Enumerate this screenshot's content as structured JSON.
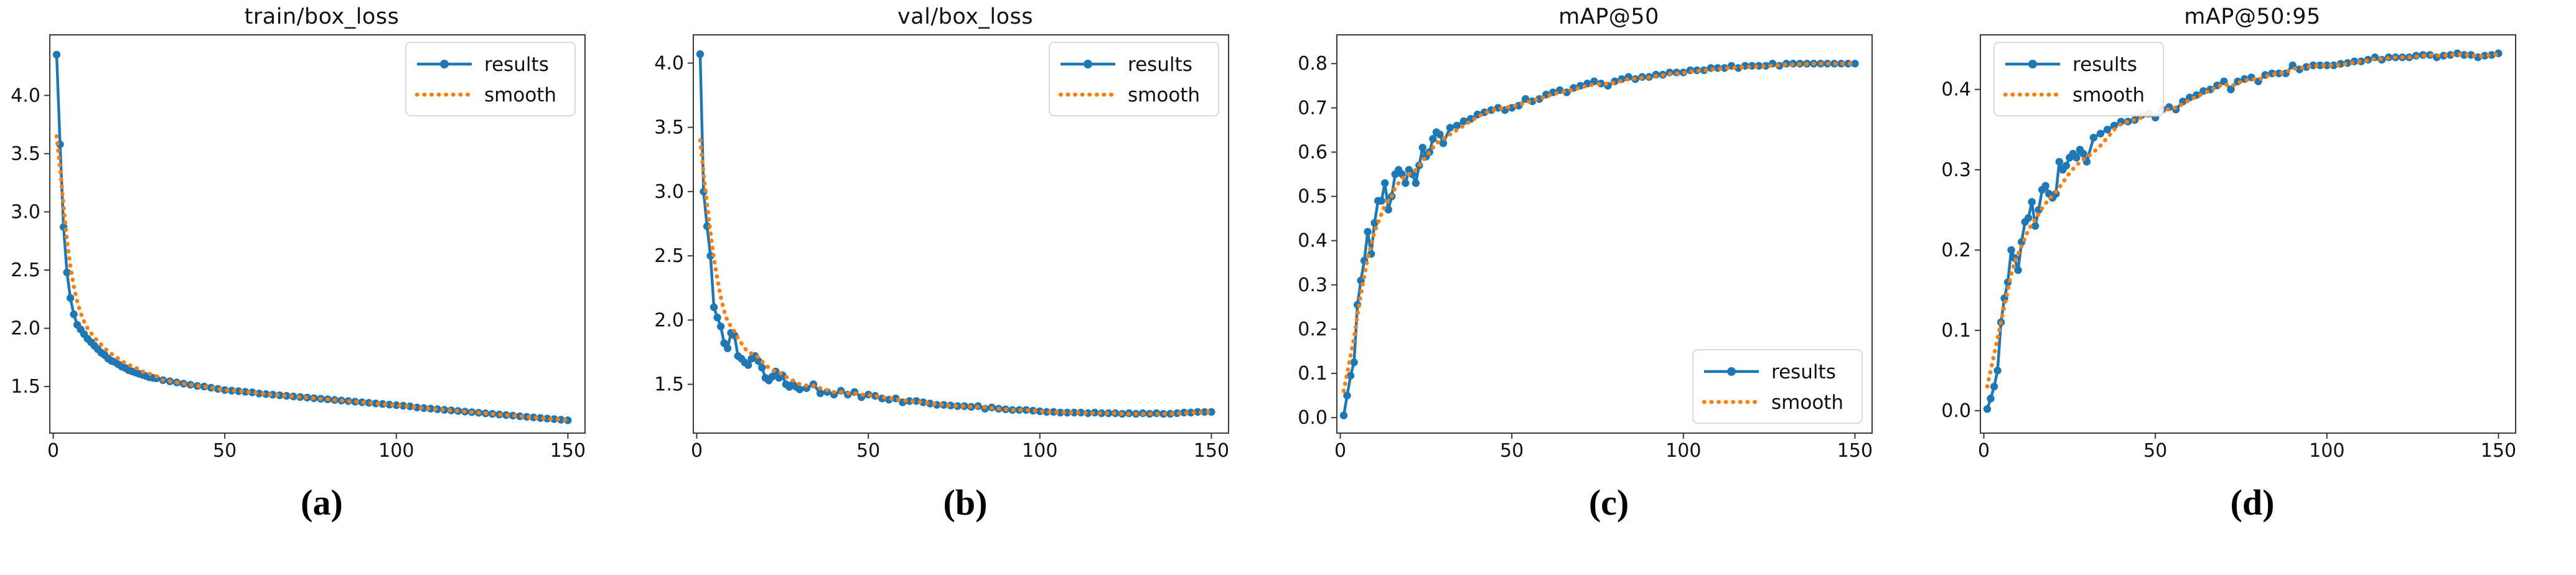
{
  "figure": {
    "background": "#ffffff",
    "description": "Four training-metric line charts over 150 epochs"
  },
  "colors": {
    "results_line": "#1f77b4",
    "smooth_line": "#ff7f0e",
    "axis": "#3a3a3a",
    "tick_text": "#111111",
    "legend_border": "#d9d9d9",
    "legend_bg": "#ffffff"
  },
  "legend": {
    "results_label": "results",
    "smooth_label": "smooth"
  },
  "chart_data": {
    "type": "line",
    "legend_entries": [
      "results",
      "smooth"
    ],
    "grid": false,
    "epochs": [
      1,
      2,
      3,
      4,
      5,
      6,
      7,
      8,
      9,
      10,
      11,
      12,
      13,
      14,
      15,
      16,
      17,
      18,
      19,
      20,
      21,
      22,
      23,
      24,
      25,
      26,
      27,
      28,
      29,
      30,
      32,
      34,
      36,
      38,
      40,
      42,
      44,
      46,
      48,
      50,
      52,
      54,
      56,
      58,
      60,
      62,
      64,
      66,
      68,
      70,
      72,
      74,
      76,
      78,
      80,
      82,
      84,
      86,
      88,
      90,
      92,
      94,
      96,
      98,
      100,
      102,
      104,
      106,
      108,
      110,
      112,
      114,
      116,
      118,
      120,
      122,
      124,
      126,
      128,
      130,
      132,
      134,
      136,
      138,
      140,
      142,
      144,
      146,
      148,
      150
    ],
    "charts": [
      {
        "title": "train/box_loss",
        "caption": "(a)",
        "legend_position": "upper-right",
        "xlim": [
          -1,
          155
        ],
        "ylim": [
          1.1,
          4.52
        ],
        "xticks": [
          0,
          50,
          100,
          150
        ],
        "yticks": [
          1.5,
          2.0,
          2.5,
          3.0,
          3.5,
          4.0
        ],
        "series": [
          {
            "name": "results",
            "values": [
              4.35,
              3.58,
              2.87,
              2.48,
              2.26,
              2.12,
              2.03,
              1.99,
              1.95,
              1.91,
              1.88,
              1.85,
              1.82,
              1.79,
              1.77,
              1.74,
              1.72,
              1.71,
              1.69,
              1.67,
              1.66,
              1.64,
              1.63,
              1.62,
              1.61,
              1.6,
              1.59,
              1.58,
              1.575,
              1.57,
              1.555,
              1.545,
              1.535,
              1.525,
              1.515,
              1.505,
              1.5,
              1.49,
              1.48,
              1.47,
              1.465,
              1.46,
              1.455,
              1.45,
              1.44,
              1.435,
              1.43,
              1.425,
              1.42,
              1.415,
              1.41,
              1.405,
              1.4,
              1.395,
              1.39,
              1.385,
              1.38,
              1.375,
              1.37,
              1.365,
              1.36,
              1.355,
              1.35,
              1.345,
              1.34,
              1.335,
              1.33,
              1.32,
              1.315,
              1.31,
              1.305,
              1.3,
              1.295,
              1.29,
              1.285,
              1.28,
              1.275,
              1.27,
              1.265,
              1.26,
              1.255,
              1.25,
              1.245,
              1.24,
              1.235,
              1.23,
              1.225,
              1.22,
              1.215,
              1.21
            ]
          },
          {
            "name": "smooth",
            "values": [
              3.65,
              3.38,
              3.05,
              2.76,
              2.53,
              2.36,
              2.23,
              2.13,
              2.06,
              2.0,
              1.96,
              1.92,
              1.89,
              1.86,
              1.83,
              1.8,
              1.78,
              1.76,
              1.74,
              1.72,
              1.7,
              1.69,
              1.67,
              1.66,
              1.65,
              1.63,
              1.62,
              1.61,
              1.6,
              1.59,
              1.555,
              1.545,
              1.535,
              1.525,
              1.515,
              1.505,
              1.5,
              1.49,
              1.48,
              1.47,
              1.465,
              1.46,
              1.455,
              1.45,
              1.44,
              1.435,
              1.43,
              1.425,
              1.42,
              1.415,
              1.41,
              1.405,
              1.4,
              1.395,
              1.39,
              1.385,
              1.38,
              1.375,
              1.37,
              1.365,
              1.36,
              1.355,
              1.35,
              1.345,
              1.34,
              1.335,
              1.33,
              1.32,
              1.315,
              1.31,
              1.305,
              1.3,
              1.295,
              1.29,
              1.285,
              1.28,
              1.275,
              1.27,
              1.265,
              1.26,
              1.255,
              1.25,
              1.245,
              1.24,
              1.235,
              1.23,
              1.225,
              1.22,
              1.215,
              1.21
            ]
          }
        ]
      },
      {
        "title": "val/box_loss",
        "caption": "(b)",
        "legend_position": "upper-right",
        "xlim": [
          -1,
          155
        ],
        "ylim": [
          1.12,
          4.22
        ],
        "xticks": [
          0,
          50,
          100,
          150
        ],
        "yticks": [
          1.5,
          2.0,
          2.5,
          3.0,
          3.5,
          4.0
        ],
        "series": [
          {
            "name": "results",
            "values": [
              4.07,
              3.0,
              2.73,
              2.5,
              2.1,
              2.02,
              1.95,
              1.82,
              1.78,
              1.9,
              1.88,
              1.72,
              1.7,
              1.67,
              1.65,
              1.7,
              1.72,
              1.68,
              1.63,
              1.55,
              1.53,
              1.56,
              1.6,
              1.55,
              1.57,
              1.5,
              1.48,
              1.5,
              1.48,
              1.46,
              1.47,
              1.5,
              1.43,
              1.44,
              1.42,
              1.45,
              1.42,
              1.44,
              1.4,
              1.42,
              1.41,
              1.39,
              1.38,
              1.39,
              1.36,
              1.37,
              1.37,
              1.36,
              1.35,
              1.34,
              1.34,
              1.335,
              1.33,
              1.33,
              1.325,
              1.33,
              1.31,
              1.32,
              1.31,
              1.305,
              1.3,
              1.3,
              1.3,
              1.295,
              1.29,
              1.285,
              1.285,
              1.28,
              1.28,
              1.28,
              1.28,
              1.275,
              1.28,
              1.275,
              1.275,
              1.275,
              1.27,
              1.275,
              1.27,
              1.275,
              1.27,
              1.275,
              1.27,
              1.27,
              1.275,
              1.28,
              1.28,
              1.285,
              1.285,
              1.285
            ]
          },
          {
            "name": "smooth",
            "values": [
              3.4,
              3.14,
              2.9,
              2.68,
              2.48,
              2.32,
              2.18,
              2.07,
              1.99,
              1.95,
              1.91,
              1.86,
              1.82,
              1.78,
              1.75,
              1.74,
              1.73,
              1.71,
              1.68,
              1.65,
              1.63,
              1.61,
              1.6,
              1.59,
              1.58,
              1.56,
              1.54,
              1.53,
              1.52,
              1.5,
              1.49,
              1.49,
              1.47,
              1.455,
              1.44,
              1.44,
              1.43,
              1.43,
              1.42,
              1.415,
              1.41,
              1.4,
              1.39,
              1.385,
              1.375,
              1.37,
              1.365,
              1.36,
              1.35,
              1.345,
              1.34,
              1.335,
              1.33,
              1.33,
              1.325,
              1.325,
              1.32,
              1.315,
              1.31,
              1.305,
              1.3,
              1.3,
              1.3,
              1.295,
              1.29,
              1.285,
              1.285,
              1.28,
              1.28,
              1.28,
              1.28,
              1.275,
              1.275,
              1.275,
              1.275,
              1.275,
              1.27,
              1.27,
              1.27,
              1.27,
              1.27,
              1.27,
              1.27,
              1.27,
              1.275,
              1.275,
              1.28,
              1.28,
              1.285,
              1.285
            ]
          }
        ]
      },
      {
        "title": "mAP@50",
        "caption": "(c)",
        "legend_position": "lower-right",
        "xlim": [
          -1,
          155
        ],
        "ylim": [
          -0.035,
          0.865
        ],
        "xticks": [
          0,
          50,
          100,
          150
        ],
        "yticks": [
          0.0,
          0.1,
          0.2,
          0.3,
          0.4,
          0.5,
          0.6,
          0.7,
          0.8
        ],
        "series": [
          {
            "name": "results",
            "values": [
              0.005,
              0.05,
              0.095,
              0.125,
              0.255,
              0.31,
              0.355,
              0.42,
              0.37,
              0.44,
              0.49,
              0.49,
              0.53,
              0.47,
              0.5,
              0.55,
              0.56,
              0.55,
              0.53,
              0.56,
              0.55,
              0.53,
              0.57,
              0.61,
              0.59,
              0.6,
              0.63,
              0.645,
              0.64,
              0.62,
              0.655,
              0.66,
              0.67,
              0.675,
              0.685,
              0.69,
              0.695,
              0.7,
              0.695,
              0.7,
              0.705,
              0.72,
              0.715,
              0.72,
              0.73,
              0.735,
              0.74,
              0.735,
              0.745,
              0.75,
              0.755,
              0.76,
              0.755,
              0.75,
              0.76,
              0.765,
              0.77,
              0.765,
              0.77,
              0.77,
              0.775,
              0.775,
              0.78,
              0.78,
              0.78,
              0.785,
              0.785,
              0.785,
              0.79,
              0.79,
              0.79,
              0.795,
              0.79,
              0.795,
              0.795,
              0.795,
              0.795,
              0.8,
              0.795,
              0.8,
              0.8,
              0.8,
              0.8,
              0.8,
              0.8,
              0.8,
              0.8,
              0.8,
              0.8,
              0.8
            ]
          },
          {
            "name": "smooth",
            "values": [
              0.06,
              0.1,
              0.14,
              0.18,
              0.23,
              0.28,
              0.32,
              0.36,
              0.39,
              0.42,
              0.44,
              0.46,
              0.48,
              0.49,
              0.5,
              0.52,
              0.53,
              0.54,
              0.545,
              0.55,
              0.555,
              0.56,
              0.57,
              0.58,
              0.59,
              0.6,
              0.61,
              0.62,
              0.625,
              0.63,
              0.64,
              0.65,
              0.66,
              0.67,
              0.68,
              0.688,
              0.694,
              0.698,
              0.7,
              0.703,
              0.707,
              0.712,
              0.716,
              0.72,
              0.726,
              0.731,
              0.735,
              0.737,
              0.741,
              0.746,
              0.75,
              0.753,
              0.754,
              0.754,
              0.757,
              0.761,
              0.765,
              0.766,
              0.768,
              0.769,
              0.772,
              0.774,
              0.777,
              0.778,
              0.779,
              0.782,
              0.784,
              0.784,
              0.787,
              0.788,
              0.789,
              0.791,
              0.791,
              0.792,
              0.793,
              0.794,
              0.794,
              0.796,
              0.796,
              0.798,
              0.798,
              0.799,
              0.799,
              0.8,
              0.8,
              0.8,
              0.8,
              0.8,
              0.8,
              0.8
            ]
          }
        ]
      },
      {
        "title": "mAP@50:95",
        "caption": "(d)",
        "legend_position": "upper-left",
        "xlim": [
          -1,
          155
        ],
        "ylim": [
          -0.028,
          0.468
        ],
        "xticks": [
          0,
          50,
          100,
          150
        ],
        "yticks": [
          0.0,
          0.1,
          0.2,
          0.3,
          0.4
        ],
        "series": [
          {
            "name": "results",
            "values": [
              0.002,
              0.015,
              0.03,
              0.05,
              0.11,
              0.14,
              0.16,
              0.2,
              0.19,
              0.175,
              0.21,
              0.235,
              0.24,
              0.26,
              0.23,
              0.25,
              0.275,
              0.28,
              0.27,
              0.265,
              0.27,
              0.31,
              0.3,
              0.305,
              0.315,
              0.32,
              0.315,
              0.325,
              0.32,
              0.31,
              0.34,
              0.345,
              0.35,
              0.355,
              0.36,
              0.36,
              0.362,
              0.368,
              0.37,
              0.365,
              0.375,
              0.378,
              0.375,
              0.385,
              0.39,
              0.393,
              0.398,
              0.4,
              0.405,
              0.41,
              0.4,
              0.41,
              0.413,
              0.415,
              0.41,
              0.418,
              0.42,
              0.42,
              0.42,
              0.43,
              0.425,
              0.428,
              0.43,
              0.43,
              0.43,
              0.43,
              0.432,
              0.433,
              0.435,
              0.435,
              0.437,
              0.44,
              0.437,
              0.44,
              0.44,
              0.44,
              0.44,
              0.442,
              0.443,
              0.443,
              0.44,
              0.442,
              0.443,
              0.445,
              0.443,
              0.443,
              0.44,
              0.442,
              0.443,
              0.445
            ]
          },
          {
            "name": "smooth",
            "values": [
              0.03,
              0.05,
              0.07,
              0.09,
              0.11,
              0.13,
              0.15,
              0.17,
              0.185,
              0.195,
              0.205,
              0.215,
              0.225,
              0.232,
              0.238,
              0.245,
              0.252,
              0.258,
              0.263,
              0.268,
              0.272,
              0.278,
              0.284,
              0.29,
              0.296,
              0.301,
              0.305,
              0.31,
              0.313,
              0.315,
              0.322,
              0.33,
              0.34,
              0.35,
              0.357,
              0.36,
              0.362,
              0.365,
              0.368,
              0.368,
              0.372,
              0.376,
              0.377,
              0.382,
              0.387,
              0.391,
              0.395,
              0.399,
              0.403,
              0.407,
              0.404,
              0.408,
              0.411,
              0.413,
              0.412,
              0.416,
              0.419,
              0.42,
              0.421,
              0.426,
              0.426,
              0.428,
              0.429,
              0.43,
              0.43,
              0.43,
              0.431,
              0.432,
              0.434,
              0.435,
              0.436,
              0.438,
              0.438,
              0.439,
              0.44,
              0.44,
              0.44,
              0.441,
              0.442,
              0.443,
              0.442,
              0.442,
              0.443,
              0.444,
              0.443,
              0.443,
              0.441,
              0.442,
              0.443,
              0.444
            ]
          }
        ]
      }
    ]
  }
}
